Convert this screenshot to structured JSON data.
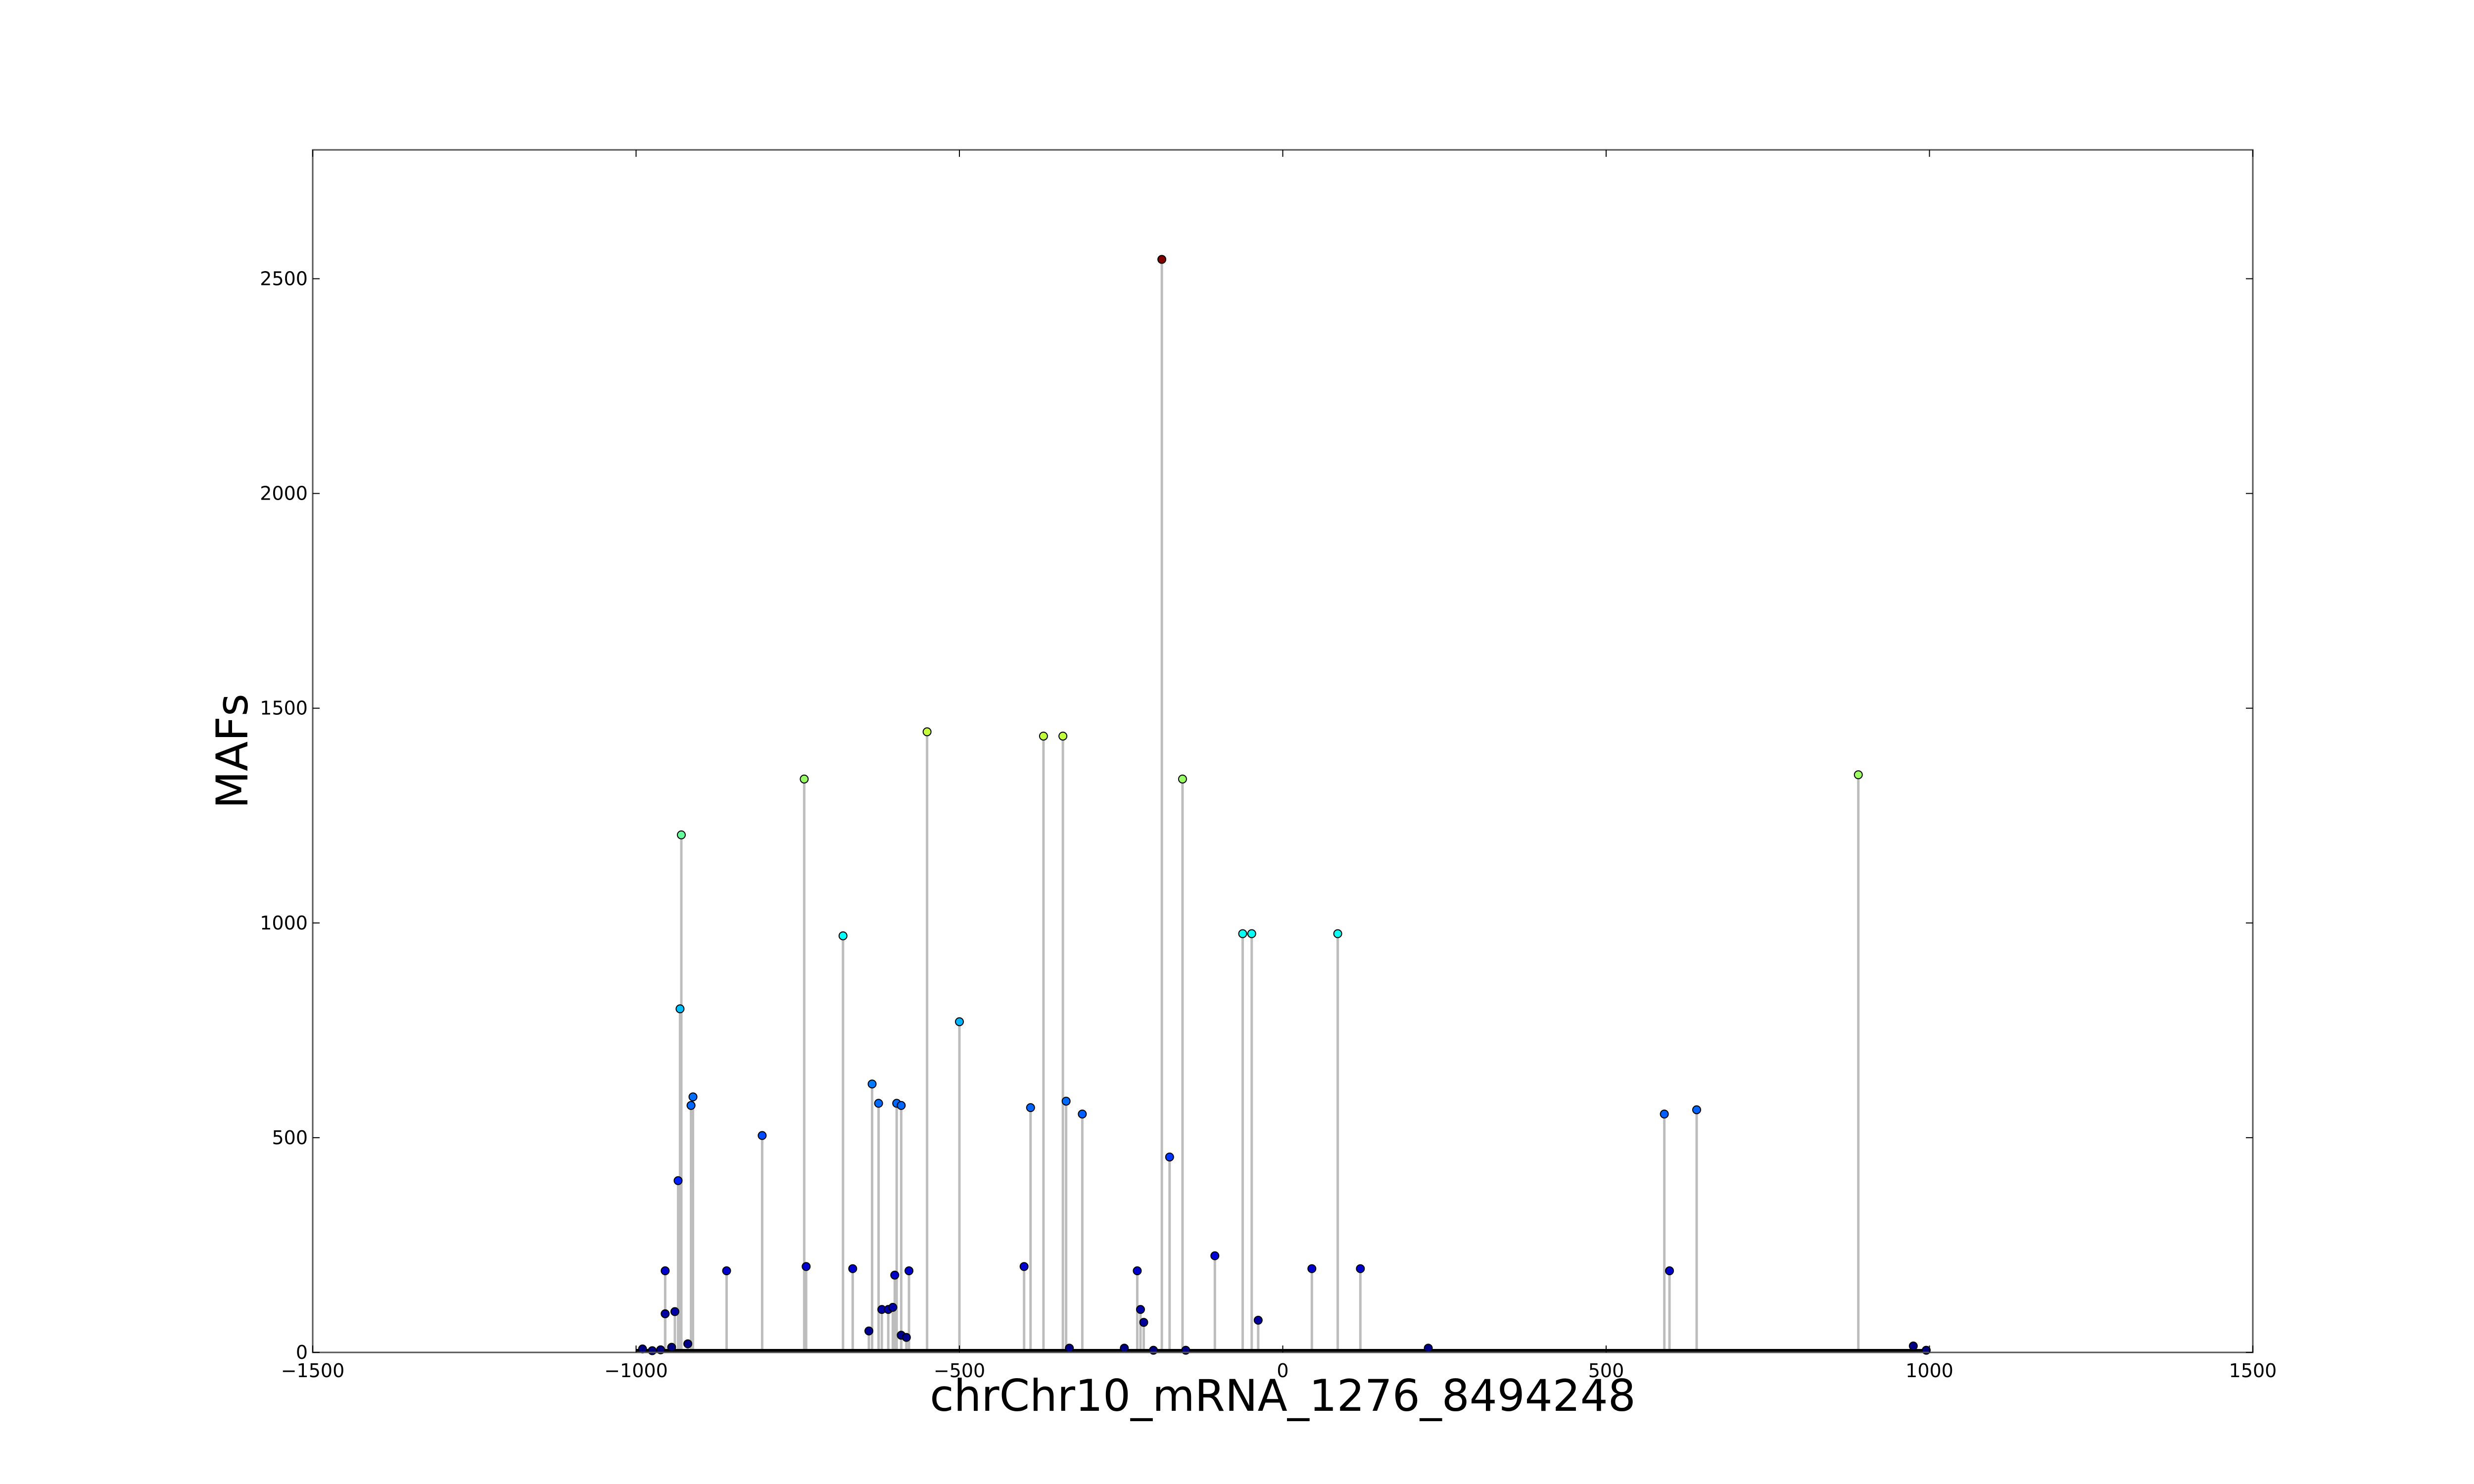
{
  "chart_data": {
    "type": "scatter",
    "style": "stem",
    "title": "",
    "xlabel": "chrChr10_mRNA_1276_8494248",
    "ylabel": "MAFs",
    "xlim": [
      -1500,
      1500
    ],
    "ylim": [
      0,
      2800
    ],
    "x_ticks": [
      -1500,
      -1000,
      -500,
      0,
      500,
      1000,
      1500
    ],
    "x_tick_labels": [
      "−1500",
      "−1000",
      "−500",
      "0",
      "500",
      "1000",
      "1500"
    ],
    "y_ticks": [
      0,
      500,
      1000,
      1500,
      2000,
      2500
    ],
    "y_tick_labels": [
      "0",
      "500",
      "1000",
      "1500",
      "2000",
      "2500"
    ],
    "grid": false,
    "legend": "none",
    "colormap": "jet",
    "colors": {
      "stem": "#bdbdbd",
      "frame": "#555555",
      "point_edge": "#000000",
      "baseline": "#000000"
    },
    "series": [
      {
        "points": [
          {
            "x": -990,
            "y": 8
          },
          {
            "x": -975,
            "y": 4
          },
          {
            "x": -962,
            "y": 6
          },
          {
            "x": -955,
            "y": 190
          },
          {
            "x": -955,
            "y": 90
          },
          {
            "x": -945,
            "y": 12
          },
          {
            "x": -940,
            "y": 95
          },
          {
            "x": -935,
            "y": 400
          },
          {
            "x": -932,
            "y": 800
          },
          {
            "x": -930,
            "y": 1205
          },
          {
            "x": -920,
            "y": 20
          },
          {
            "x": -915,
            "y": 575
          },
          {
            "x": -912,
            "y": 595
          },
          {
            "x": -860,
            "y": 190
          },
          {
            "x": -805,
            "y": 505
          },
          {
            "x": -740,
            "y": 1335
          },
          {
            "x": -737,
            "y": 200
          },
          {
            "x": -680,
            "y": 970
          },
          {
            "x": -665,
            "y": 195
          },
          {
            "x": -640,
            "y": 50
          },
          {
            "x": -635,
            "y": 625
          },
          {
            "x": -625,
            "y": 580
          },
          {
            "x": -620,
            "y": 100
          },
          {
            "x": -610,
            "y": 100
          },
          {
            "x": -603,
            "y": 105
          },
          {
            "x": -600,
            "y": 180
          },
          {
            "x": -597,
            "y": 580
          },
          {
            "x": -590,
            "y": 575
          },
          {
            "x": -590,
            "y": 40
          },
          {
            "x": -582,
            "y": 35
          },
          {
            "x": -578,
            "y": 190
          },
          {
            "x": -550,
            "y": 1445
          },
          {
            "x": -500,
            "y": 770
          },
          {
            "x": -400,
            "y": 200
          },
          {
            "x": -390,
            "y": 570
          },
          {
            "x": -370,
            "y": 1435
          },
          {
            "x": -340,
            "y": 1435
          },
          {
            "x": -335,
            "y": 585
          },
          {
            "x": -330,
            "y": 10
          },
          {
            "x": -310,
            "y": 555
          },
          {
            "x": -245,
            "y": 10
          },
          {
            "x": -225,
            "y": 190
          },
          {
            "x": -220,
            "y": 100
          },
          {
            "x": -215,
            "y": 70
          },
          {
            "x": -200,
            "y": 5
          },
          {
            "x": -187,
            "y": 2545
          },
          {
            "x": -175,
            "y": 455
          },
          {
            "x": -155,
            "y": 1335
          },
          {
            "x": -150,
            "y": 5
          },
          {
            "x": -105,
            "y": 225
          },
          {
            "x": -62,
            "y": 975
          },
          {
            "x": -48,
            "y": 975
          },
          {
            "x": -38,
            "y": 75
          },
          {
            "x": 45,
            "y": 195
          },
          {
            "x": 85,
            "y": 975
          },
          {
            "x": 120,
            "y": 195
          },
          {
            "x": 225,
            "y": 10
          },
          {
            "x": 590,
            "y": 555
          },
          {
            "x": 598,
            "y": 190
          },
          {
            "x": 640,
            "y": 565
          },
          {
            "x": 890,
            "y": 1345
          },
          {
            "x": 975,
            "y": 15
          },
          {
            "x": 995,
            "y": 5
          }
        ]
      }
    ]
  }
}
